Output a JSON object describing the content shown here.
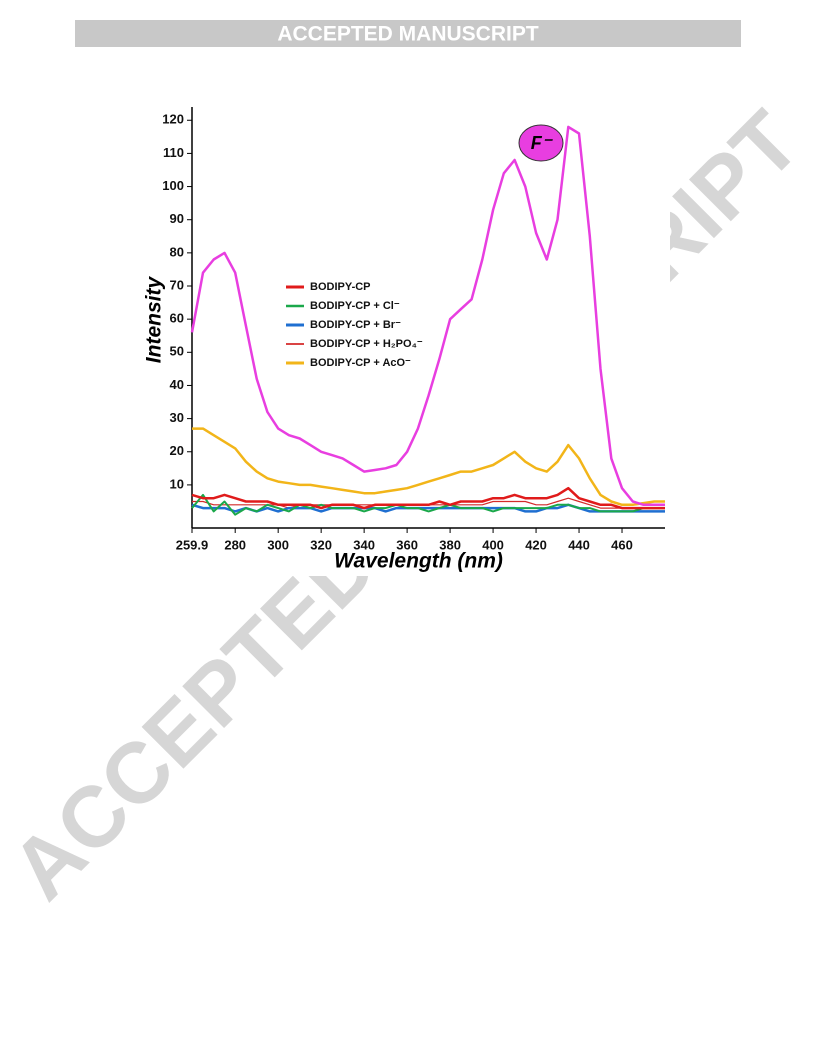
{
  "header": {
    "title": "ACCEPTED MANUSCRIPT"
  },
  "watermark": "ACCEPTED MANUSCRIPT",
  "chart_data": {
    "type": "line",
    "xlabel": "Wavelength (nm)",
    "ylabel": "Intensity",
    "x": [
      259.9,
      265,
      270,
      275,
      280,
      285,
      290,
      295,
      300,
      305,
      310,
      315,
      320,
      325,
      330,
      335,
      340,
      345,
      350,
      355,
      360,
      365,
      370,
      375,
      380,
      385,
      390,
      395,
      400,
      405,
      410,
      415,
      420,
      425,
      430,
      435,
      440,
      445,
      450,
      455,
      460,
      465,
      470,
      475,
      480
    ],
    "xlim": [
      259.9,
      480
    ],
    "xticks": [
      259.9,
      280,
      300,
      320,
      340,
      360,
      380,
      400,
      420,
      440,
      460
    ],
    "ylim": [
      -3,
      124
    ],
    "yticks": [
      10,
      20,
      30,
      40,
      50,
      60,
      70,
      80,
      90,
      100,
      110,
      120
    ],
    "legend": "center-left",
    "series": [
      {
        "name": "F⁻",
        "color": "#e83ee0",
        "width": 2.5,
        "values": [
          56,
          74,
          78,
          80,
          74,
          58,
          42,
          32,
          27,
          25,
          24,
          22,
          20,
          19,
          18,
          16,
          14,
          14.5,
          15,
          16,
          20,
          27,
          37,
          48,
          60,
          63,
          66,
          78,
          93,
          104,
          108,
          100,
          86,
          78,
          90,
          118,
          116,
          85,
          45,
          18,
          9,
          5,
          4,
          4,
          4
        ]
      },
      {
        "name": "BODIPY-CP",
        "color": "#e01b1b",
        "width": 2.5,
        "values": [
          7,
          6,
          6,
          7,
          6,
          5,
          5,
          5,
          4,
          4,
          4,
          4,
          3,
          4,
          4,
          4,
          3,
          4,
          4,
          4,
          4,
          4,
          4,
          5,
          4,
          5,
          5,
          5,
          6,
          6,
          7,
          6,
          6,
          6,
          7,
          9,
          6,
          5,
          4,
          4,
          3,
          3,
          3,
          3,
          3
        ]
      },
      {
        "name": "BODIPY-CP + Cl⁻",
        "color": "#1aa84a",
        "width": 2,
        "values": [
          3,
          7,
          2,
          5,
          1,
          3,
          2,
          4,
          3,
          2,
          4,
          3,
          4,
          3,
          3,
          3,
          2,
          3,
          3,
          4,
          3,
          3,
          2,
          3,
          4,
          3,
          3,
          3,
          2,
          3,
          3,
          3,
          3,
          3,
          4,
          4,
          3,
          3,
          2,
          2,
          2,
          2,
          3,
          3,
          3
        ]
      },
      {
        "name": "BODIPY-CP + Br⁻",
        "color": "#1f6fd1",
        "width": 2.5,
        "values": [
          4,
          3,
          3,
          3,
          2,
          3,
          2,
          3,
          2,
          3,
          3,
          3,
          2,
          3,
          3,
          3,
          3,
          3,
          2,
          3,
          3,
          3,
          3,
          3,
          3,
          3,
          3,
          3,
          3,
          3,
          3,
          2,
          2,
          3,
          3,
          4,
          3,
          2,
          2,
          2,
          2,
          2,
          2,
          2,
          2
        ]
      },
      {
        "name": "BODIPY-CP + H₂PO₄⁻",
        "color": "#d42a2a",
        "width": 1.2,
        "values": [
          5,
          5,
          4,
          4,
          4,
          4,
          4,
          4,
          4,
          3,
          4,
          4,
          4,
          4,
          4,
          4,
          4,
          4,
          4,
          4,
          4,
          4,
          4,
          4,
          4,
          4,
          4,
          4,
          5,
          5,
          5,
          5,
          4,
          4,
          5,
          6,
          5,
          4,
          3,
          3,
          3,
          3,
          3,
          3,
          3
        ]
      },
      {
        "name": "BODIPY-CP + AcO⁻",
        "color": "#f2b519",
        "width": 2.5,
        "values": [
          27,
          27,
          25,
          23,
          21,
          17,
          14,
          12,
          11,
          10.5,
          10,
          10,
          9.5,
          9,
          8.5,
          8,
          7.5,
          7.5,
          8,
          8.5,
          9,
          10,
          11,
          12,
          13,
          14,
          14,
          15,
          16,
          18,
          20,
          17,
          15,
          14,
          17,
          22,
          18,
          12,
          7,
          5,
          4,
          4,
          4.5,
          5,
          5
        ]
      }
    ]
  }
}
